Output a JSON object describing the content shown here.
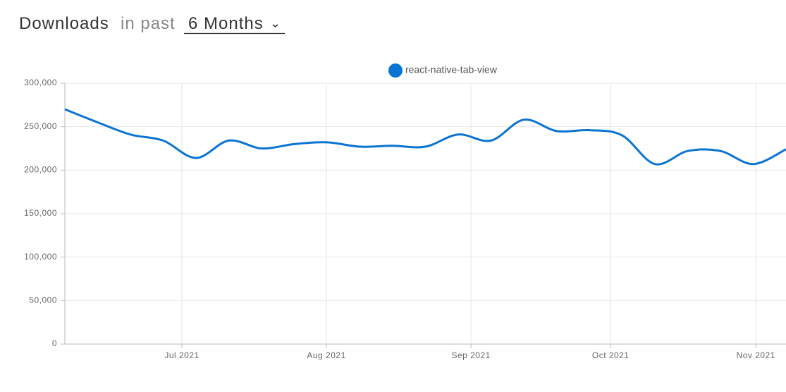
{
  "header": {
    "title": "Downloads",
    "connector": "in past",
    "period": "6 Months"
  },
  "chart_data": {
    "type": "line",
    "categories": [
      null,
      null,
      null,
      null,
      null,
      null,
      null,
      null,
      null,
      null,
      null,
      null,
      null,
      null,
      null,
      null,
      null,
      null,
      null,
      null,
      null,
      null,
      null
    ],
    "series": [
      {
        "name": "react-native-tab-view",
        "color": "#0b74d0",
        "values": [
          270000,
          255000,
          241000,
          234000,
          214000,
          234000,
          225000,
          230000,
          232000,
          227000,
          228000,
          227000,
          241000,
          234000,
          258000,
          245000,
          246000,
          240000,
          207000,
          222000,
          222000,
          207000,
          224000
        ]
      }
    ],
    "ylim": [
      0,
      300000
    ],
    "yticks": [
      0,
      {
        "value": 50000,
        "label": "50,000"
      },
      {
        "value": 100000,
        "label": "100,000"
      },
      {
        "value": 150000,
        "label": "150,000"
      },
      {
        "value": 200000,
        "label": "200,000"
      },
      {
        "value": 250000,
        "label": "250,000"
      },
      {
        "value": 300000,
        "label": "300,000"
      }
    ],
    "xticks": [
      {
        "value": 3.57,
        "label": "Jul 2021"
      },
      {
        "value": 7.98,
        "label": "Aug 2021"
      },
      {
        "value": 12.39,
        "label": "Sep 2021"
      },
      {
        "value": 16.65,
        "label": "Oct 2021"
      },
      {
        "value": 21.08,
        "label": "Nov 2021"
      }
    ],
    "grid": true,
    "legend": "top"
  }
}
